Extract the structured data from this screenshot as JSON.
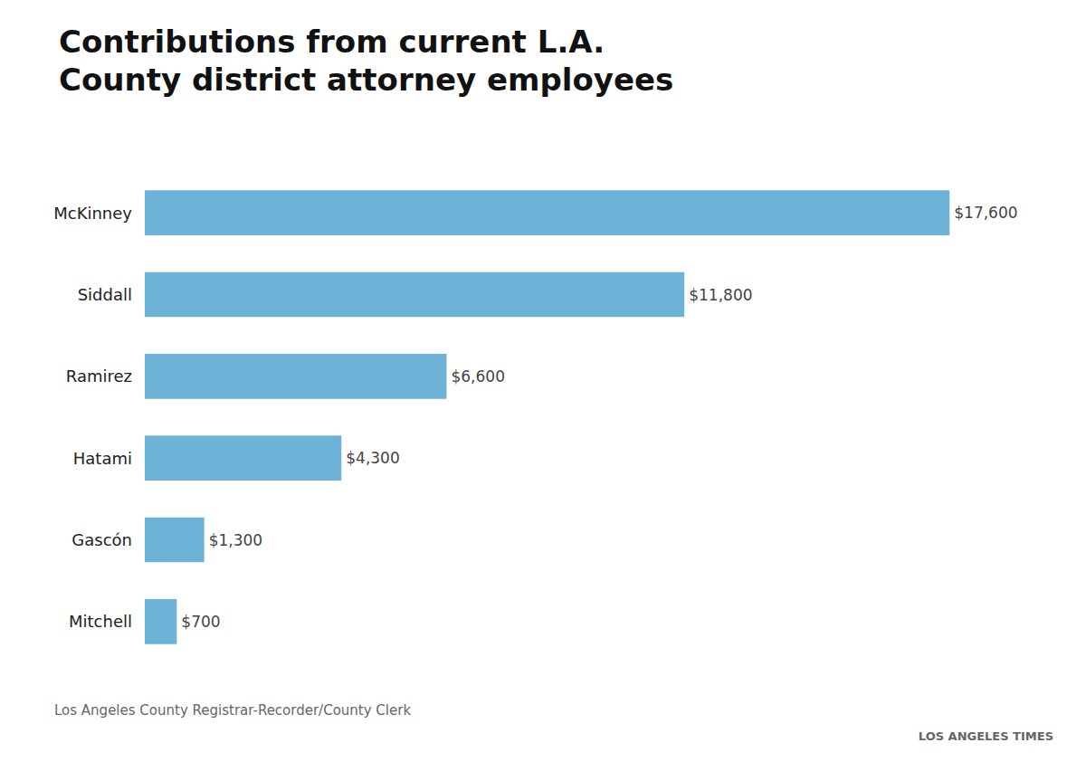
{
  "chart_data": {
    "type": "bar",
    "orientation": "horizontal",
    "title": "Contributions from current L.A.\nCounty district attorney employees",
    "categories": [
      "McKinney",
      "Siddall",
      "Ramirez",
      "Hatami",
      "Gascón",
      "Mitchell"
    ],
    "values": [
      17600,
      11800,
      6600,
      4300,
      1300,
      700
    ],
    "value_labels": [
      "$17,600",
      "$11,800",
      "$6,600",
      "$4,300",
      "$1,300",
      "$700"
    ],
    "data_labels": true,
    "color": "#6db3d8",
    "xlim": [
      0,
      19000
    ],
    "tick_labels": "y",
    "grid": false,
    "annotations": [
      "Los Angeles County Registrar-Recorder/County Clerk",
      "LOS ANGELES TIMES"
    ]
  }
}
